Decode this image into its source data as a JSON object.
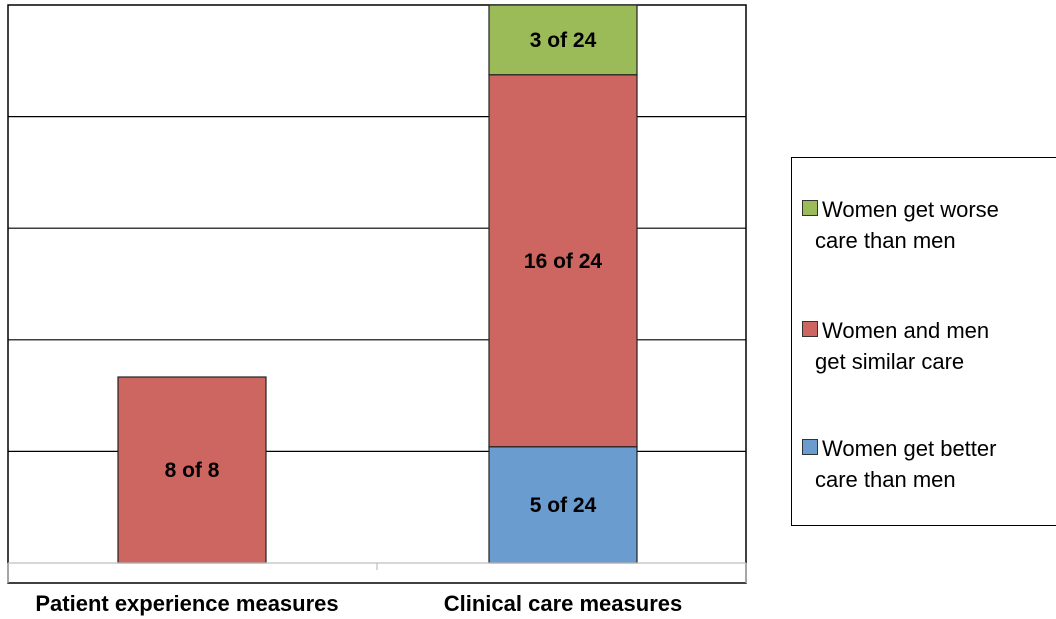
{
  "chart_data": {
    "type": "bar",
    "stacked": true,
    "categories": [
      "Patient experience measures",
      "Clinical care measures"
    ],
    "series": [
      {
        "name": "Women get better care than men",
        "color": "#6a9ccf",
        "values": [
          0,
          5
        ],
        "labels": [
          "",
          "5 of 24"
        ]
      },
      {
        "name": "Women and men get similar care",
        "color": "#cd6560",
        "values": [
          8,
          16
        ],
        "labels": [
          "8 of 8",
          "16 of 24"
        ]
      },
      {
        "name": "Women get worse care than men",
        "color": "#9bbb59",
        "values": [
          0,
          3
        ],
        "labels": [
          "",
          "3 of 24"
        ]
      }
    ],
    "ylim": [
      0,
      24
    ],
    "grid": true,
    "legend_position": "right",
    "legend": [
      {
        "line1": "Women get worse",
        "line2": "care than men",
        "color": "#9bbb59"
      },
      {
        "line1": "Women and men",
        "line2": "get similar care",
        "color": "#cd6560"
      },
      {
        "line1": "Women get better",
        "line2": "care  than men",
        "color": "#6a9ccf"
      }
    ]
  }
}
